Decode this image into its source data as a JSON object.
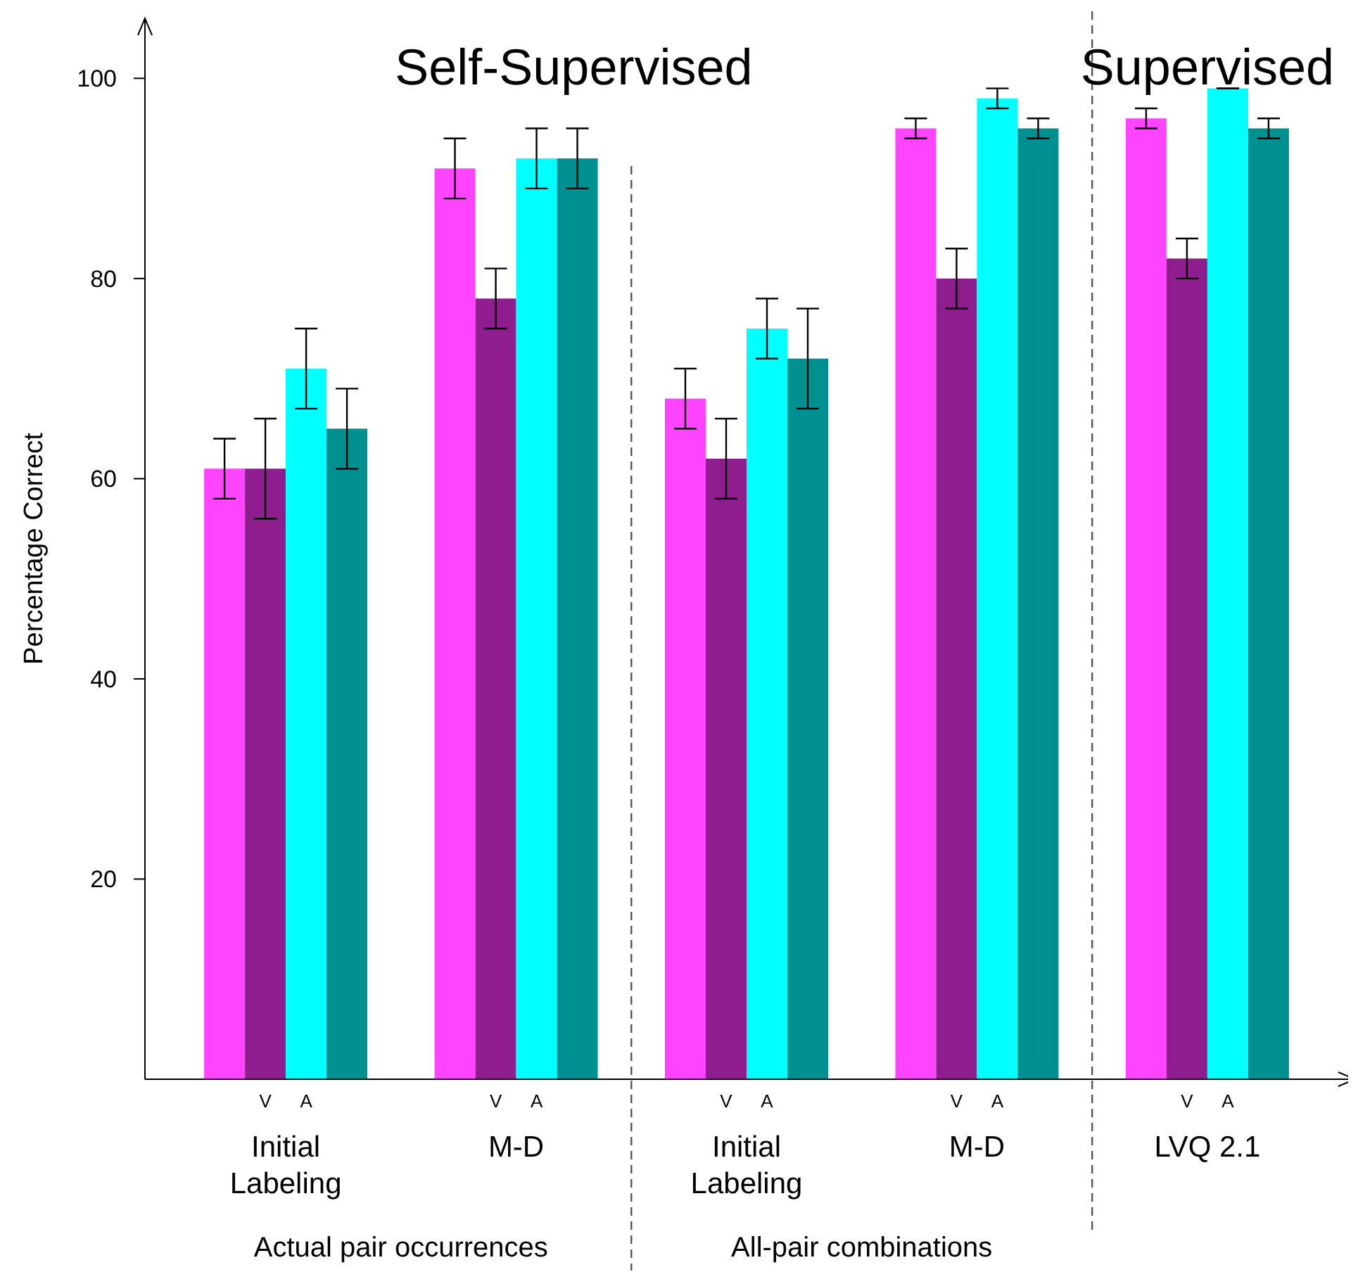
{
  "chart_data": {
    "type": "bar",
    "ylabel": "Percentage Correct",
    "categories": [
      "Initial\nLabeling",
      "M-D",
      "Initial\nLabeling",
      "M-D",
      "LVQ 2.1"
    ],
    "series": [
      {
        "color": "#ff44ff",
        "values": [
          61,
          91,
          68,
          95,
          96
        ],
        "errors": [
          [
            58,
            64
          ],
          [
            88,
            94
          ],
          [
            65,
            71
          ],
          [
            94,
            96
          ],
          [
            95,
            97
          ]
        ]
      },
      {
        "name": "V",
        "color": "#8e1e8e",
        "values": [
          61,
          78,
          62,
          80,
          82
        ],
        "errors": [
          [
            56,
            66
          ],
          [
            75,
            81
          ],
          [
            58,
            66
          ],
          [
            77,
            83
          ],
          [
            80,
            84
          ]
        ]
      },
      {
        "name": "A",
        "color": "#00ffff",
        "values": [
          71,
          92,
          75,
          98,
          99
        ],
        "errors": [
          [
            67,
            75
          ],
          [
            89,
            95
          ],
          [
            72,
            78
          ],
          [
            97,
            99
          ],
          [
            99,
            99
          ]
        ]
      },
      {
        "color": "#009090",
        "values": [
          65,
          92,
          72,
          95,
          95
        ],
        "errors": [
          [
            61,
            69
          ],
          [
            89,
            95
          ],
          [
            67,
            77
          ],
          [
            94,
            96
          ],
          [
            94,
            96
          ]
        ]
      }
    ],
    "ylim": [
      0,
      106
    ],
    "yticks": [
      20,
      40,
      60,
      80,
      100
    ],
    "annotations": [
      "Self-Supervised",
      "Supervised",
      "Actual pair occurrences",
      "All-pair combinations"
    ],
    "grid": false
  }
}
